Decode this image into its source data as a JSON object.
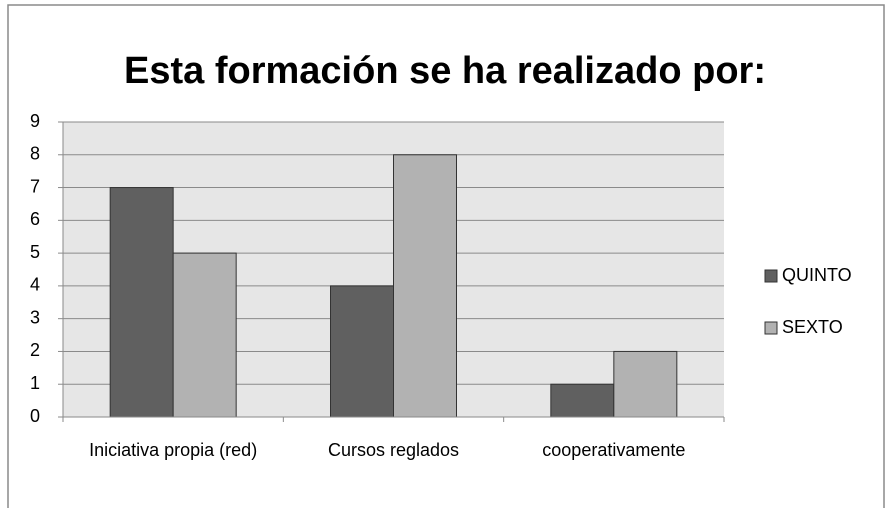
{
  "chart_data": {
    "type": "bar",
    "title": "Esta formación se ha realizado por:",
    "categories": [
      "Iniciativa propia (red)",
      "Cursos reglados",
      "cooperativamente"
    ],
    "series": [
      {
        "name": "QUINTO",
        "color": "#606060",
        "values": [
          7,
          4,
          1
        ]
      },
      {
        "name": "SEXTO",
        "color": "#b2b2b2",
        "values": [
          5,
          8,
          2
        ]
      }
    ],
    "ylim": [
      0,
      9
    ],
    "yticks": [
      0,
      1,
      2,
      3,
      4,
      5,
      6,
      7,
      8,
      9
    ],
    "grid": true,
    "legend": "right"
  }
}
